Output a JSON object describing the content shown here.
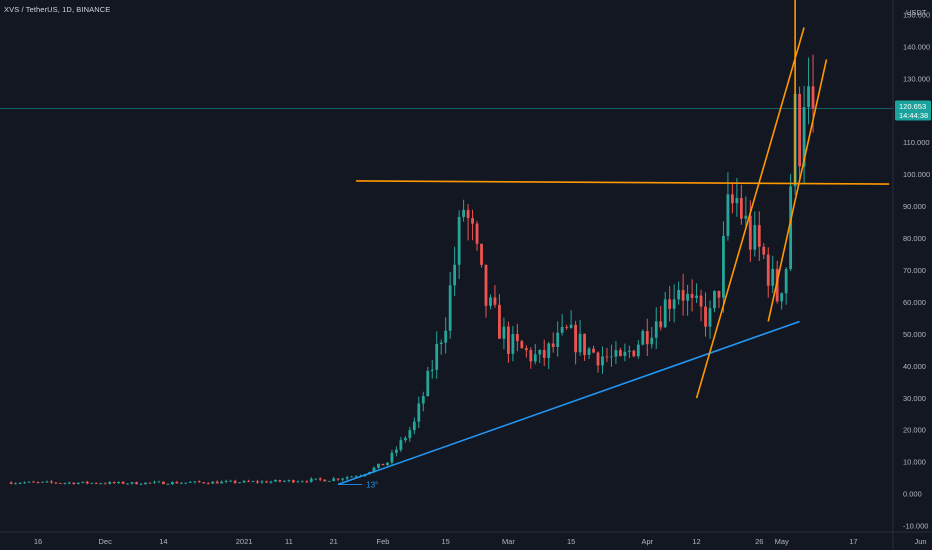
{
  "header": {
    "title": "XVS / TetherUS, 1D, BINANCE"
  },
  "colors": {
    "background": "#131722",
    "up": "#26a69a",
    "down": "#ef5350",
    "axis_text": "#b2b5be",
    "orange": "#ff9800",
    "blue": "#2196f3",
    "price_tag": "#1aa39c"
  },
  "chart_data": {
    "type": "candlestick",
    "title": "",
    "currency_label": "USDT",
    "y_ticks": [
      "150.000",
      "140.000",
      "130.000",
      "120.000",
      "110.000",
      "100.000",
      "90.000",
      "80.000",
      "70.000",
      "60.000",
      "50.000",
      "40.000",
      "30.000",
      "20.000",
      "10.000",
      "0.000",
      "-10.000"
    ],
    "x_ticks": [
      "16",
      "Dec",
      "14",
      "2021",
      "11",
      "21",
      "Feb",
      "15",
      "Mar",
      "15",
      "Apr",
      "12",
      "26",
      "May",
      "17",
      "Jun"
    ],
    "ylim": [
      -10,
      150
    ],
    "last_price": "120.653",
    "countdown": "14:44:38",
    "angle_label": "13°",
    "trend_lines": [
      {
        "name": "horizontal resistance",
        "color": "orange",
        "from": [
          "Jan 26",
          98
        ],
        "to": [
          "May 25",
          97
        ]
      },
      {
        "name": "rising support",
        "color": "blue",
        "from": [
          "Jan 22",
          3
        ],
        "to": [
          "May 5",
          54
        ]
      },
      {
        "name": "channel lower",
        "color": "orange",
        "from": [
          "Apr 12",
          30
        ],
        "to": [
          "May 6",
          146
        ]
      },
      {
        "name": "channel upper",
        "color": "orange",
        "from": [
          "Apr 28",
          54
        ],
        "to": [
          "May 11",
          136
        ]
      },
      {
        "name": "vertical",
        "color": "orange",
        "from": [
          "May 4",
          97
        ],
        "to": [
          "May 4",
          160
        ]
      }
    ],
    "candles_by_phase": [
      {
        "phase": "Nov 10 - Jan 21",
        "low": 3,
        "high": 5
      },
      {
        "phase": "Jan 22 - Feb 9",
        "low": 5,
        "high": 25
      },
      {
        "phase": "Feb 10 - Feb 19",
        "low": 35,
        "high": 103
      },
      {
        "phase": "Feb 20 - Apr 10",
        "low": 36,
        "high": 67
      },
      {
        "phase": "Apr 11 - Apr 30",
        "low": 55,
        "high": 98
      },
      {
        "phase": "May 1 - May 6",
        "low": 95,
        "high": 132
      }
    ]
  }
}
